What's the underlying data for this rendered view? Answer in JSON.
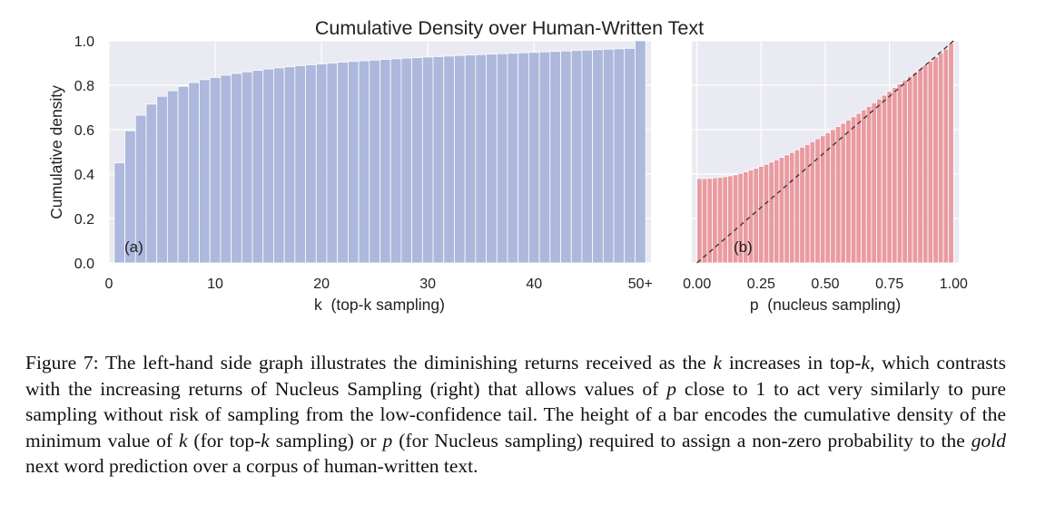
{
  "figure": {
    "title": "Cumulative Density over Human-Written Text",
    "caption": {
      "label": "Figure 7:",
      "parts": [
        "The left-hand side graph illustrates the diminishing returns received as the ",
        "k",
        " increases in top-",
        "k",
        ", which contrasts with the increasing returns of Nucleus Sampling (right) that allows values of ",
        "p",
        " close to 1 to act very similarly to pure sampling without risk of sampling from the low-confidence tail. The height of a bar encodes the cumulative density of the minimum value of ",
        "k",
        " (for top-",
        "k",
        " sampling) or ",
        "p",
        " (for Nucleus sampling) required to assign a non-zero probability to the ",
        "gold",
        " next word prediction over a corpus of human-written text."
      ]
    }
  },
  "colors": {
    "panel_background": "#eaeaf2",
    "grid": "#ffffff",
    "topk_bar": "#aab6db",
    "nucleus_bar": "#e9979d",
    "diagonal": "#3a3a3a"
  },
  "chart_data": [
    {
      "type": "bar",
      "panel_label": "(a)",
      "xlabel": "k  (top-k sampling)",
      "ylabel": "Cumulative density",
      "ylim": [
        0,
        1.0
      ],
      "xlim": [
        0,
        51
      ],
      "xticks": [
        0,
        10,
        20,
        30,
        40,
        50
      ],
      "xtick_labels": [
        "0",
        "10",
        "20",
        "30",
        "40",
        "50+"
      ],
      "yticks": [
        0.0,
        0.2,
        0.4,
        0.6,
        0.8,
        1.0
      ],
      "ytick_labels": [
        "0.0",
        "0.2",
        "0.4",
        "0.6",
        "0.8",
        "1.0"
      ],
      "grid": true,
      "x": [
        1,
        2,
        3,
        4,
        5,
        6,
        7,
        8,
        9,
        10,
        11,
        12,
        13,
        14,
        15,
        16,
        17,
        18,
        19,
        20,
        21,
        22,
        23,
        24,
        25,
        26,
        27,
        28,
        29,
        30,
        31,
        32,
        33,
        34,
        35,
        36,
        37,
        38,
        39,
        40,
        41,
        42,
        43,
        44,
        45,
        46,
        47,
        48,
        49,
        50
      ],
      "values": [
        0.45,
        0.595,
        0.665,
        0.715,
        0.75,
        0.775,
        0.795,
        0.812,
        0.825,
        0.835,
        0.845,
        0.853,
        0.86,
        0.867,
        0.873,
        0.878,
        0.883,
        0.888,
        0.892,
        0.896,
        0.9,
        0.904,
        0.907,
        0.91,
        0.913,
        0.916,
        0.919,
        0.922,
        0.924,
        0.927,
        0.929,
        0.931,
        0.934,
        0.936,
        0.938,
        0.94,
        0.942,
        0.944,
        0.946,
        0.948,
        0.95,
        0.952,
        0.954,
        0.956,
        0.958,
        0.96,
        0.962,
        0.964,
        0.966,
        1.0
      ]
    },
    {
      "type": "bar",
      "panel_label": "(b)",
      "xlabel": "p  (nucleus sampling)",
      "ylabel": "",
      "ylim": [
        0,
        1.0
      ],
      "xlim": [
        -0.02,
        1.02
      ],
      "xticks": [
        0.0,
        0.25,
        0.5,
        0.75,
        1.0
      ],
      "xtick_labels": [
        "0.00",
        "0.25",
        "0.50",
        "0.75",
        "1.00"
      ],
      "yticks": [
        0.0,
        0.2,
        0.4,
        0.6,
        0.8,
        1.0
      ],
      "grid": true,
      "reference_line": {
        "style": "dashed",
        "from": [
          0,
          0
        ],
        "to": [
          1,
          1
        ]
      },
      "x": [
        0.01,
        0.03,
        0.05,
        0.07,
        0.09,
        0.11,
        0.13,
        0.15,
        0.17,
        0.19,
        0.21,
        0.23,
        0.25,
        0.27,
        0.29,
        0.31,
        0.33,
        0.35,
        0.37,
        0.39,
        0.41,
        0.43,
        0.45,
        0.47,
        0.49,
        0.51,
        0.53,
        0.55,
        0.57,
        0.59,
        0.61,
        0.63,
        0.65,
        0.67,
        0.69,
        0.71,
        0.73,
        0.75,
        0.77,
        0.79,
        0.81,
        0.83,
        0.85,
        0.87,
        0.89,
        0.91,
        0.93,
        0.95,
        0.97,
        0.99
      ],
      "values": [
        0.38,
        0.38,
        0.381,
        0.383,
        0.385,
        0.388,
        0.392,
        0.397,
        0.403,
        0.41,
        0.418,
        0.426,
        0.435,
        0.444,
        0.454,
        0.464,
        0.475,
        0.486,
        0.497,
        0.509,
        0.521,
        0.533,
        0.546,
        0.559,
        0.572,
        0.586,
        0.6,
        0.614,
        0.628,
        0.643,
        0.658,
        0.673,
        0.689,
        0.705,
        0.721,
        0.738,
        0.755,
        0.772,
        0.789,
        0.806,
        0.823,
        0.84,
        0.857,
        0.874,
        0.891,
        0.909,
        0.927,
        0.945,
        0.963,
        0.99
      ]
    }
  ]
}
